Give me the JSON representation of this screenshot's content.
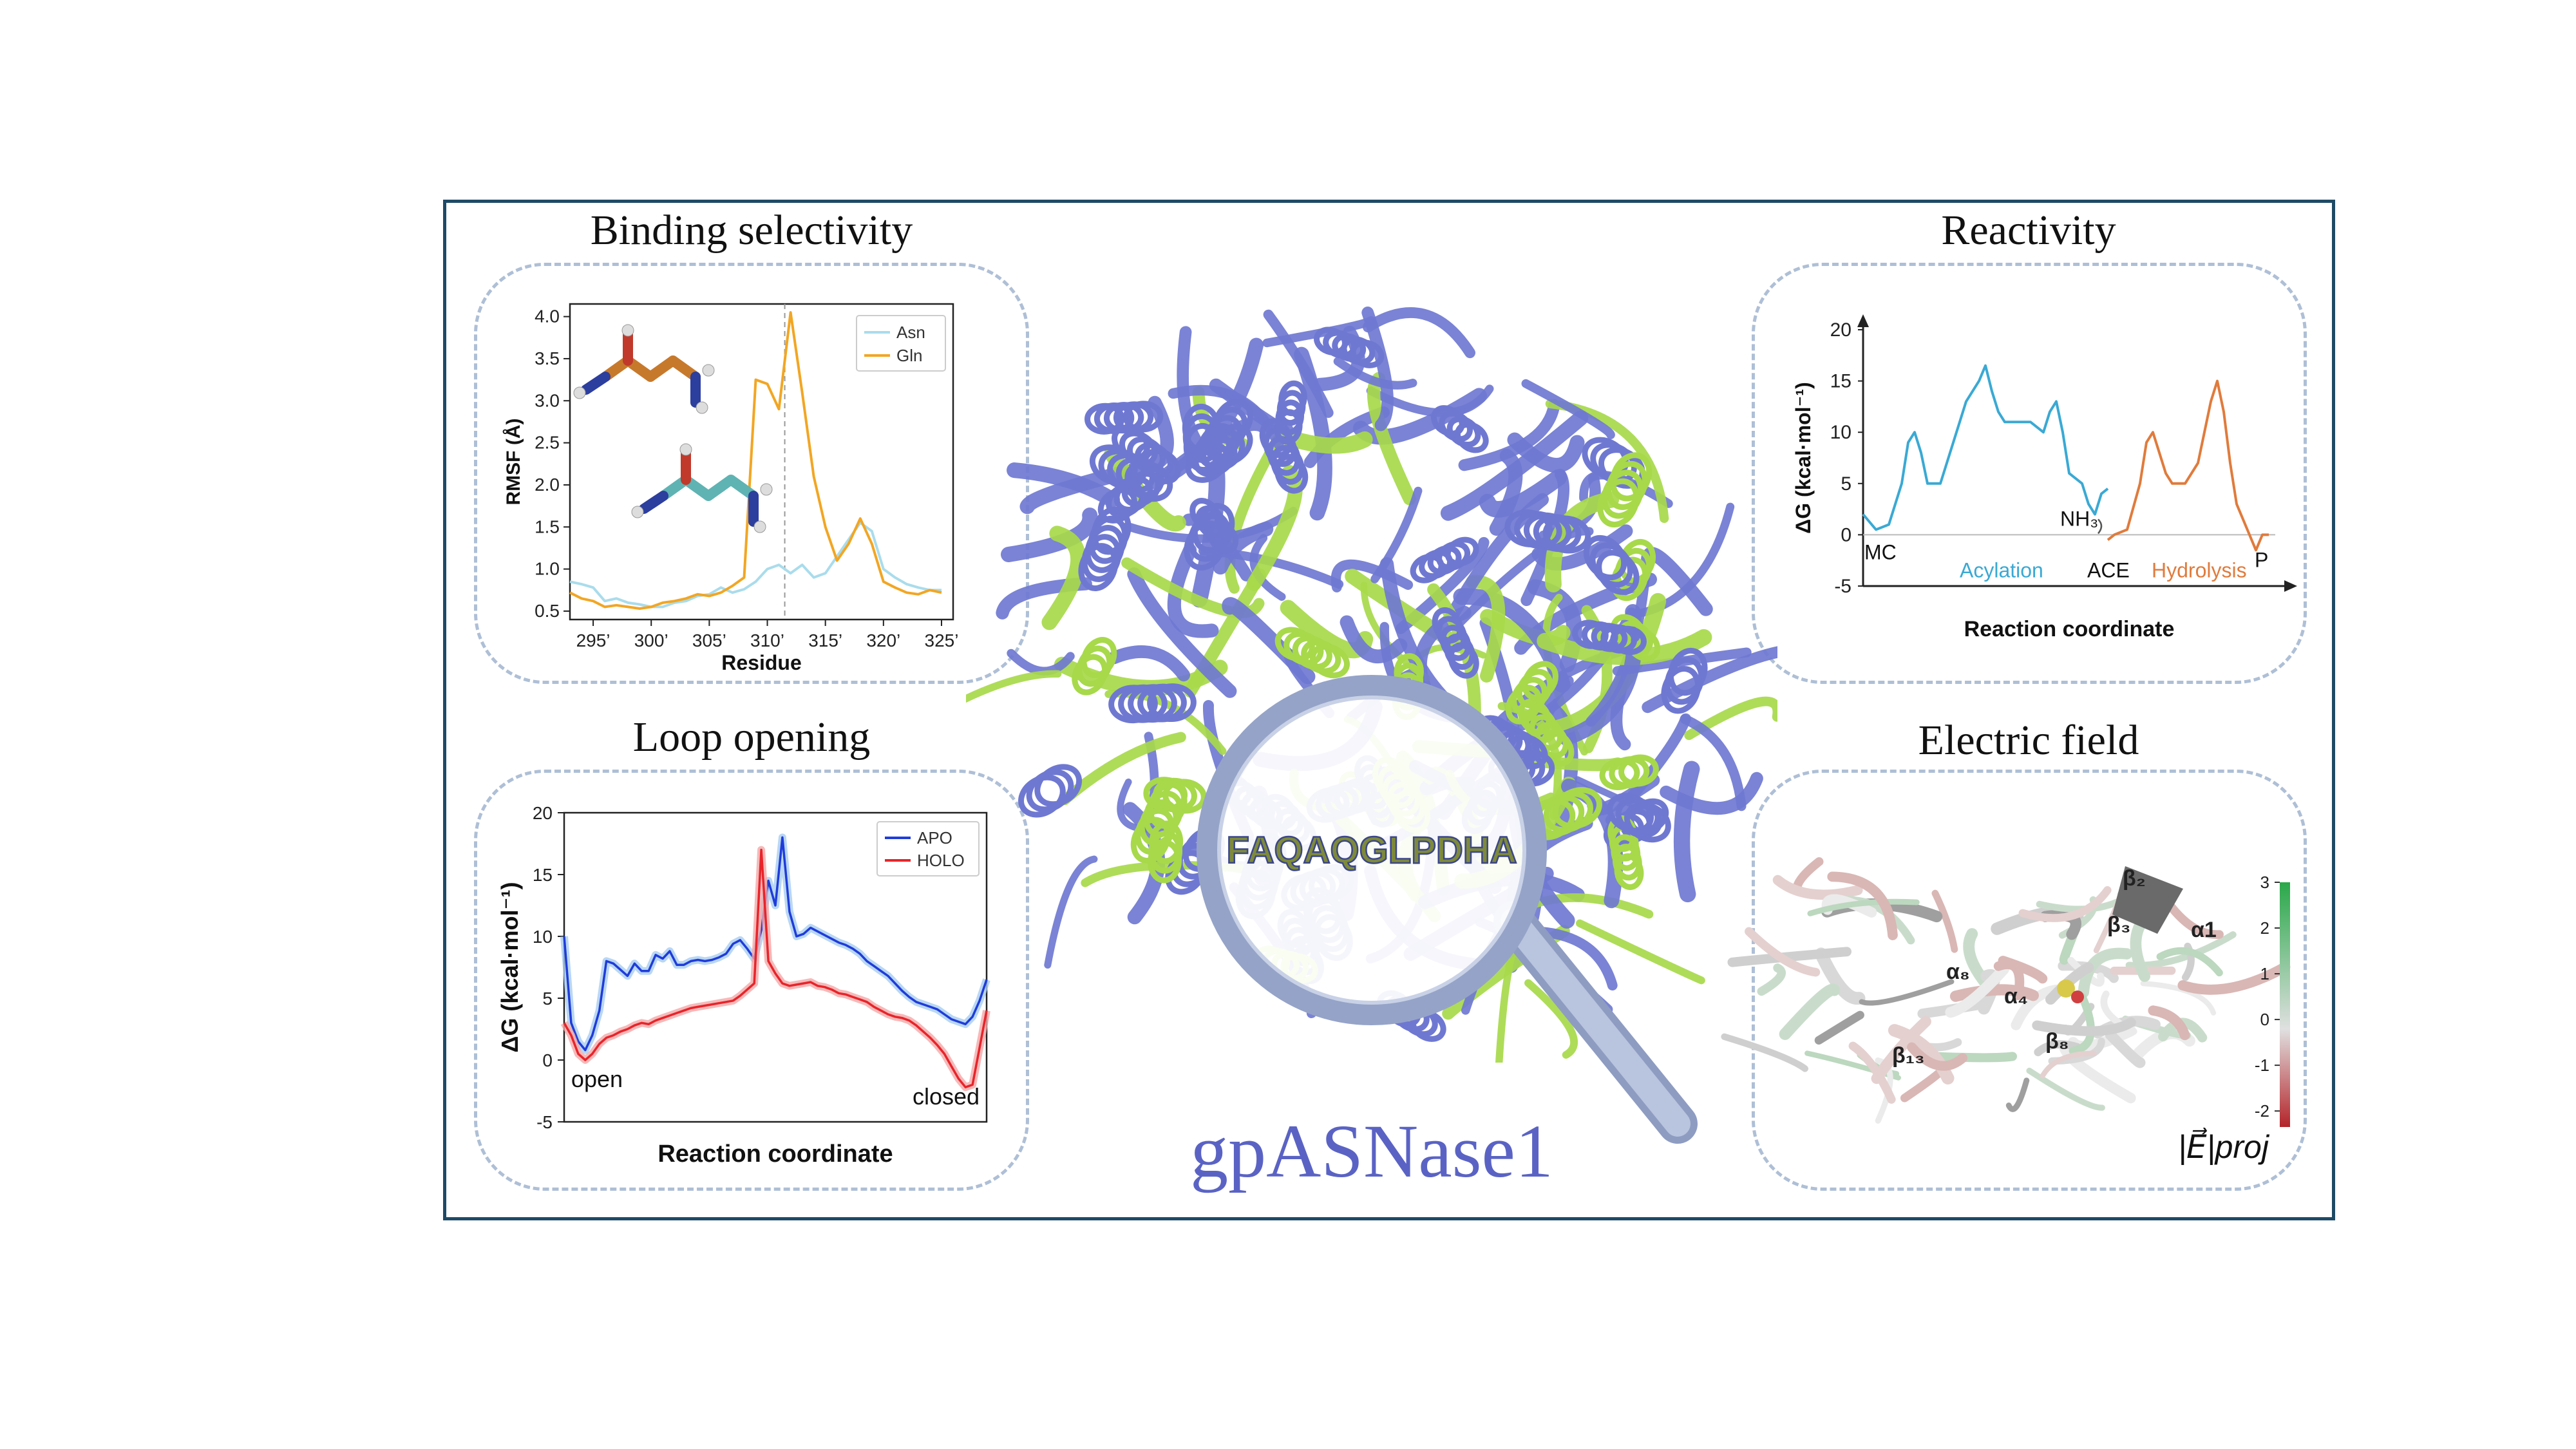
{
  "center": {
    "title": "gpASNase1",
    "sequence": "FAQAQGLPDHA",
    "colors": {
      "protein": "#6f78d1",
      "highlight": "#a7d94a",
      "lens": "#98a6cb",
      "title": "#5a63c4"
    }
  },
  "panels": {
    "binding": {
      "title": "Binding selectivity"
    },
    "reactivity": {
      "title": "Reactivity"
    },
    "loop": {
      "title": "Loop opening"
    },
    "efield": {
      "title": "Electric field"
    }
  },
  "chart_data": [
    {
      "id": "binding",
      "type": "line",
      "xlabel": "Residue",
      "ylabel": "RMSF (Å)",
      "xlim": [
        293,
        326
      ],
      "ylim": [
        0.4,
        4.15
      ],
      "xticks": [
        295,
        300,
        305,
        310,
        315,
        320,
        325
      ],
      "xtick_labels": [
        "295’",
        "300’",
        "305’",
        "310’",
        "315’",
        "320’",
        "325’"
      ],
      "yticks": [
        0.5,
        1.0,
        1.5,
        2.0,
        2.5,
        3.0,
        3.5,
        4.0
      ],
      "ytick_labels": [
        "0.5",
        "1.0",
        "1.5",
        "2.0",
        "2.5",
        "3.0",
        "3.5",
        "4.0"
      ],
      "vline_x": 311.5,
      "legend_position": "top-right",
      "series": [
        {
          "name": "Asn",
          "color": "#a9dcec",
          "x": [
            293,
            294,
            295,
            296,
            297,
            298,
            299,
            300,
            301,
            302,
            303,
            304,
            305,
            306,
            307,
            308,
            309,
            310,
            311,
            312,
            313,
            314,
            315,
            316,
            317,
            318,
            319,
            320,
            321,
            322,
            323,
            324,
            325
          ],
          "y": [
            0.85,
            0.82,
            0.78,
            0.62,
            0.65,
            0.6,
            0.58,
            0.55,
            0.55,
            0.6,
            0.62,
            0.68,
            0.7,
            0.78,
            0.72,
            0.76,
            0.85,
            1.0,
            1.05,
            0.95,
            1.05,
            0.9,
            0.95,
            1.15,
            1.35,
            1.55,
            1.45,
            1.0,
            0.9,
            0.82,
            0.78,
            0.75,
            0.75
          ]
        },
        {
          "name": "Gln",
          "color": "#f2a623",
          "x": [
            293,
            294,
            295,
            296,
            297,
            298,
            299,
            300,
            301,
            302,
            303,
            304,
            305,
            306,
            307,
            308,
            309,
            310,
            311,
            312,
            313,
            314,
            315,
            316,
            317,
            318,
            319,
            320,
            321,
            322,
            323,
            324,
            325
          ],
          "y": [
            0.72,
            0.65,
            0.62,
            0.55,
            0.57,
            0.55,
            0.53,
            0.55,
            0.6,
            0.62,
            0.65,
            0.7,
            0.68,
            0.72,
            0.8,
            0.9,
            3.25,
            3.2,
            2.9,
            4.05,
            3.1,
            2.1,
            1.5,
            1.1,
            1.3,
            1.6,
            1.3,
            0.85,
            0.78,
            0.72,
            0.7,
            0.75,
            0.72
          ]
        }
      ]
    },
    {
      "id": "reactivity",
      "type": "line",
      "xlabel": "Reaction coordinate",
      "ylabel": "ΔG (kcal·mol⁻¹)",
      "ylim": [
        -5,
        20
      ],
      "yticks": [
        -5,
        0,
        5,
        10,
        15,
        20
      ],
      "ytick_labels": [
        "-5",
        "0",
        "5",
        "10",
        "15",
        "20"
      ],
      "annotations": [
        "MC",
        "Acylation",
        "NH₃",
        "ACE",
        "Hydrolysis",
        "P"
      ],
      "series": [
        {
          "name": "Acylation",
          "color": "#3aa9d4",
          "x": [
            0,
            2,
            4,
            6,
            7,
            8,
            9,
            10,
            12,
            14,
            16,
            18,
            19,
            20,
            21,
            22,
            24,
            26,
            28,
            29,
            30,
            31,
            32,
            34,
            35,
            36,
            37,
            38
          ],
          "y": [
            2,
            0.5,
            1,
            5,
            9,
            10,
            8,
            5,
            5,
            9,
            13,
            15,
            16.5,
            14,
            12,
            11,
            11,
            11,
            10,
            12,
            13,
            10,
            6,
            5,
            3,
            2,
            4,
            4.5
          ]
        },
        {
          "name": "Hydrolysis",
          "color": "#e07b3c",
          "x": [
            38,
            39,
            41,
            43,
            44,
            45,
            46,
            47,
            48,
            50,
            52,
            53,
            54,
            55,
            56,
            57,
            58,
            60,
            61,
            62,
            63
          ],
          "y": [
            -0.5,
            0,
            0.5,
            5,
            9,
            10,
            8,
            6,
            5,
            5,
            7,
            10,
            13,
            15,
            12,
            7,
            3,
            0,
            -1.5,
            0,
            0
          ]
        }
      ]
    },
    {
      "id": "loop",
      "type": "line",
      "xlabel": "Reaction coordinate",
      "ylabel": "ΔG (kcal·mol⁻¹)",
      "xlim": [
        0,
        60
      ],
      "ylim": [
        -5,
        20
      ],
      "yticks": [
        -5,
        0,
        5,
        10,
        15,
        20
      ],
      "ytick_labels": [
        "-5",
        "0",
        "5",
        "10",
        "15",
        "20"
      ],
      "annotations": [
        "open",
        "closed"
      ],
      "legend_position": "top-right",
      "series": [
        {
          "name": "APO",
          "color": "#1f3cdb",
          "x": [
            0,
            1,
            2,
            3,
            4,
            5,
            6,
            7,
            8,
            9,
            10,
            11,
            12,
            13,
            14,
            15,
            16,
            17,
            18,
            19,
            20,
            21,
            22,
            23,
            24,
            25,
            26,
            27,
            28,
            29,
            30,
            31,
            32,
            33,
            34,
            35,
            36,
            37,
            38,
            39,
            40,
            41,
            42,
            43,
            44,
            45,
            46,
            47,
            48,
            49,
            50,
            51,
            52,
            53,
            54,
            55,
            56,
            57,
            58,
            59,
            60
          ],
          "y": [
            10,
            3,
            1.5,
            0.8,
            2,
            4,
            8,
            7.8,
            7.3,
            6.8,
            7.8,
            7.2,
            7.2,
            8.5,
            8.2,
            8.8,
            7.7,
            7.7,
            8,
            8.1,
            8,
            8.1,
            8.3,
            8.6,
            9.4,
            9.7,
            9,
            8.2,
            10.5,
            14.5,
            12.5,
            18,
            12,
            10,
            10.2,
            10.7,
            10.4,
            10.1,
            9.8,
            9.5,
            9.3,
            9,
            8.6,
            8,
            7.6,
            7.2,
            6.8,
            6.2,
            5.6,
            5.1,
            4.7,
            4.5,
            4.3,
            4.1,
            3.7,
            3.3,
            3.1,
            2.9,
            3.5,
            4.8,
            6.5
          ]
        },
        {
          "name": "HOLO",
          "color": "#e8242a",
          "x": [
            0,
            1,
            2,
            3,
            4,
            5,
            6,
            7,
            8,
            9,
            10,
            11,
            12,
            13,
            14,
            15,
            16,
            17,
            18,
            19,
            20,
            21,
            22,
            23,
            24,
            25,
            26,
            27,
            28,
            29,
            30,
            31,
            32,
            33,
            34,
            35,
            36,
            37,
            38,
            39,
            40,
            41,
            42,
            43,
            44,
            45,
            46,
            47,
            48,
            49,
            50,
            51,
            52,
            53,
            54,
            55,
            56,
            57,
            58,
            59,
            60
          ],
          "y": [
            3,
            2,
            0.5,
            0,
            0.5,
            1.3,
            1.8,
            2,
            2.3,
            2.5,
            2.8,
            3,
            2.9,
            3.2,
            3.4,
            3.6,
            3.8,
            4,
            4.2,
            4.3,
            4.4,
            4.5,
            4.6,
            4.7,
            4.8,
            5.2,
            5.7,
            6.2,
            17,
            8,
            7,
            6.2,
            6,
            6.1,
            6.2,
            6.3,
            6,
            5.9,
            5.7,
            5.4,
            5.3,
            5.1,
            4.9,
            4.7,
            4.3,
            4,
            3.7,
            3.5,
            3.4,
            3.2,
            2.8,
            2.3,
            1.8,
            1.2,
            0.5,
            -0.5,
            -1.5,
            -2.2,
            -2,
            1,
            4
          ]
        }
      ]
    },
    {
      "id": "efield",
      "type": "heatmap",
      "colorbar_ticks": [
        3,
        2,
        1,
        0,
        -1,
        -2
      ],
      "colorbar_tick_labels": [
        "3",
        "2",
        "1",
        "0",
        "-1",
        "-2"
      ],
      "colorbar_label": "|E⃗|proj",
      "colors": {
        "high": "#2aa84a",
        "zero": "#e0e0e0",
        "low": "#b3242a"
      },
      "structure_labels": [
        "β₂",
        "β₃",
        "α1",
        "α₈",
        "α₄",
        "β₈",
        "β₁₃"
      ]
    }
  ]
}
